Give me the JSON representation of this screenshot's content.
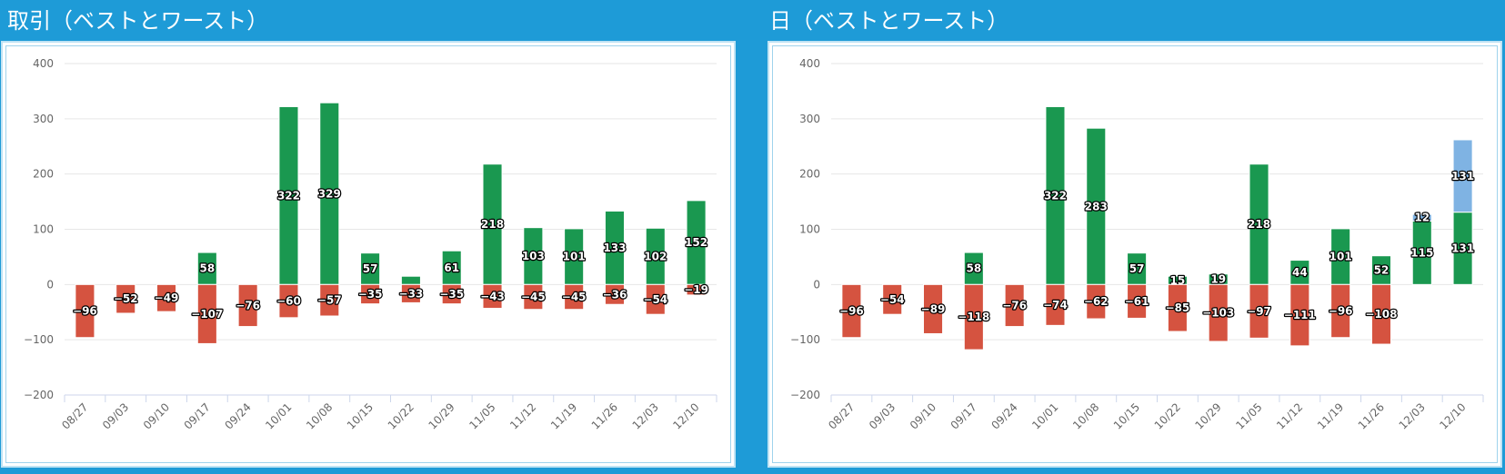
{
  "colors": {
    "positive": "#1a9850",
    "negative": "#d55340",
    "extra": "#7fb3e3",
    "background": "#1e9bd7"
  },
  "chart_data": [
    {
      "type": "bar",
      "title": "取引（ベストとワースト）",
      "categories": [
        "08/27",
        "09/03",
        "09/10",
        "09/17",
        "09/24",
        "10/01",
        "10/08",
        "10/15",
        "10/22",
        "10/29",
        "11/05",
        "11/12",
        "11/19",
        "11/26",
        "12/03",
        "12/10"
      ],
      "series": [
        {
          "values": [
            null,
            null,
            null,
            58,
            null,
            322,
            329,
            57,
            15,
            61,
            218,
            103,
            101,
            133,
            102,
            152
          ],
          "color": "#1a9850"
        },
        {
          "values": [
            -96,
            -52,
            -49,
            -107,
            -76,
            -60,
            -57,
            -35,
            -33,
            -35,
            -43,
            -45,
            -45,
            -36,
            -54,
            -19
          ],
          "color": "#d55340"
        }
      ],
      "data_labels": [
        [
          null,
          null,
          null,
          "58",
          null,
          "322",
          "329",
          "57",
          null,
          "61",
          "218",
          "103",
          "101",
          "133",
          "102",
          "152"
        ],
        [
          "-96",
          "-52",
          "-49",
          "-107",
          "-76",
          "-60",
          "-57",
          "-35",
          "-33",
          "-35",
          "-43",
          "-45",
          "-45",
          "-36",
          "-54",
          "-19"
        ]
      ],
      "ylim": [
        -200,
        400
      ],
      "yticks": [
        -200,
        -100,
        0,
        100,
        200,
        300,
        400
      ],
      "grid": true,
      "legend": "none"
    },
    {
      "type": "bar",
      "title": "日（ベストとワースト）",
      "categories": [
        "08/27",
        "09/03",
        "09/10",
        "09/17",
        "09/24",
        "10/01",
        "10/08",
        "10/15",
        "10/22",
        "10/29",
        "11/05",
        "11/12",
        "11/19",
        "11/26",
        "12/03",
        "12/10"
      ],
      "series": [
        {
          "values": [
            null,
            null,
            null,
            58,
            null,
            322,
            283,
            57,
            15,
            19,
            218,
            44,
            101,
            52,
            115,
            131
          ],
          "color": "#1a9850"
        },
        {
          "values": [
            -96,
            -54,
            -89,
            -118,
            -76,
            -74,
            -62,
            -61,
            -85,
            -103,
            -97,
            -111,
            -96,
            -108,
            null,
            null
          ],
          "color": "#d55340"
        },
        {
          "values": [
            null,
            null,
            null,
            null,
            null,
            null,
            null,
            null,
            null,
            null,
            null,
            null,
            null,
            null,
            12,
            131
          ],
          "color": "#7fb3e3"
        }
      ],
      "data_labels": [
        [
          null,
          null,
          null,
          "58",
          null,
          "322",
          "283",
          "57",
          "15",
          "19",
          "218",
          "44",
          "101",
          "52",
          "115",
          "131"
        ],
        [
          "-96",
          "-54",
          "-89",
          "-118",
          "-76",
          "-74",
          "-62",
          "-61",
          "-85",
          "-103",
          "-97",
          "-111",
          "-96",
          "-108",
          null,
          null
        ],
        [
          null,
          null,
          null,
          null,
          null,
          null,
          null,
          null,
          null,
          null,
          null,
          null,
          null,
          null,
          "12",
          "131"
        ]
      ],
      "ylim": [
        -200,
        400
      ],
      "yticks": [
        -200,
        -100,
        0,
        100,
        200,
        300,
        400
      ],
      "grid": true,
      "legend": "none"
    }
  ]
}
